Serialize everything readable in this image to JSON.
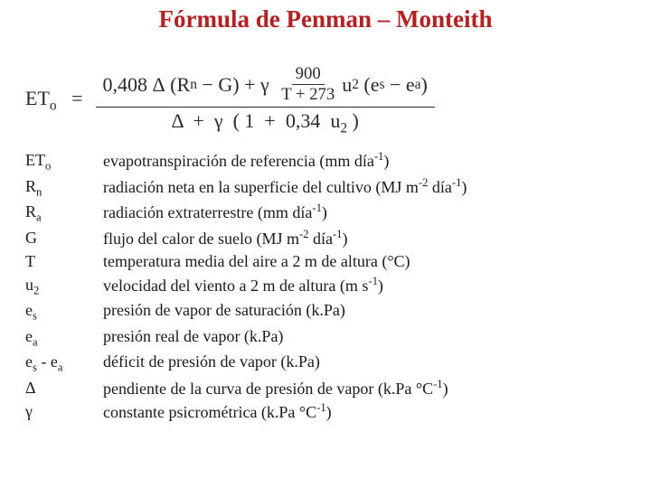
{
  "title": "Fórmula de Penman – Monteith",
  "formula": {
    "lhs_var": "ET",
    "lhs_sub": "o",
    "coef1": "0,408",
    "rn": "R",
    "rn_sub": "n",
    "g": "G",
    "c900": "900",
    "tplus": "T + 273",
    "u": "u",
    "u_sub": "2",
    "es": "e",
    "es_sub": "s",
    "ea": "e",
    "ea_sub": "a",
    "den_coef": "0,34",
    "one": "1",
    "delta": "Δ",
    "gamma": "γ",
    "plus": "+",
    "minus": "−",
    "equals": "=",
    "lp": "(",
    "rp": ")",
    "lp2": "(",
    "rp2": ")",
    "lp3": "(",
    "rp3": ")"
  },
  "defs": [
    {
      "sym_html": "ET<span class='sub'>o</span>",
      "desc": "evapotranspiración de referencia (mm día<span class='sup'>-1</span>)"
    },
    {
      "sym_html": "R<span class='sub'>n</span>",
      "desc": "radiación neta en la superficie del cultivo (MJ m<span class='sup'>-2</span> día<span class='sup'>-1</span>)"
    },
    {
      "sym_html": "R<span class='sub'>a</span>",
      "desc": "radiación extraterrestre (mm día<span class='sup'>-1</span>)"
    },
    {
      "sym_html": "G",
      "desc": "flujo del calor de suelo (MJ m<span class='sup'>-2</span> día<span class='sup'>-1</span>)"
    },
    {
      "sym_html": "T",
      "desc": "temperatura media del aire a 2 m de altura (°C)"
    },
    {
      "sym_html": "u<span class='sub'>2</span>",
      "desc": "velocidad del viento a 2 m de altura (m s<span class='sup'>-1</span>)"
    },
    {
      "sym_html": "e<span class='sub'>s</span>",
      "desc": "presión de vapor de saturación (k.Pa)"
    },
    {
      "sym_html": "e<span class='sub'>a</span>",
      "desc": "presión real de vapor (k.Pa)"
    },
    {
      "sym_html": "e<span class='sub'>s</span> - e<span class='sub'>a</span>",
      "desc": "déficit de presión de vapor (k.Pa)"
    },
    {
      "sym_html": "Δ",
      "desc": "pendiente de la curva de presión de vapor (k.Pa °C<span class='sup'>-1</span>)"
    },
    {
      "sym_html": "γ",
      "desc": "constante psicrométrica (k.Pa °C<span class='sup'>-1</span>)"
    }
  ]
}
